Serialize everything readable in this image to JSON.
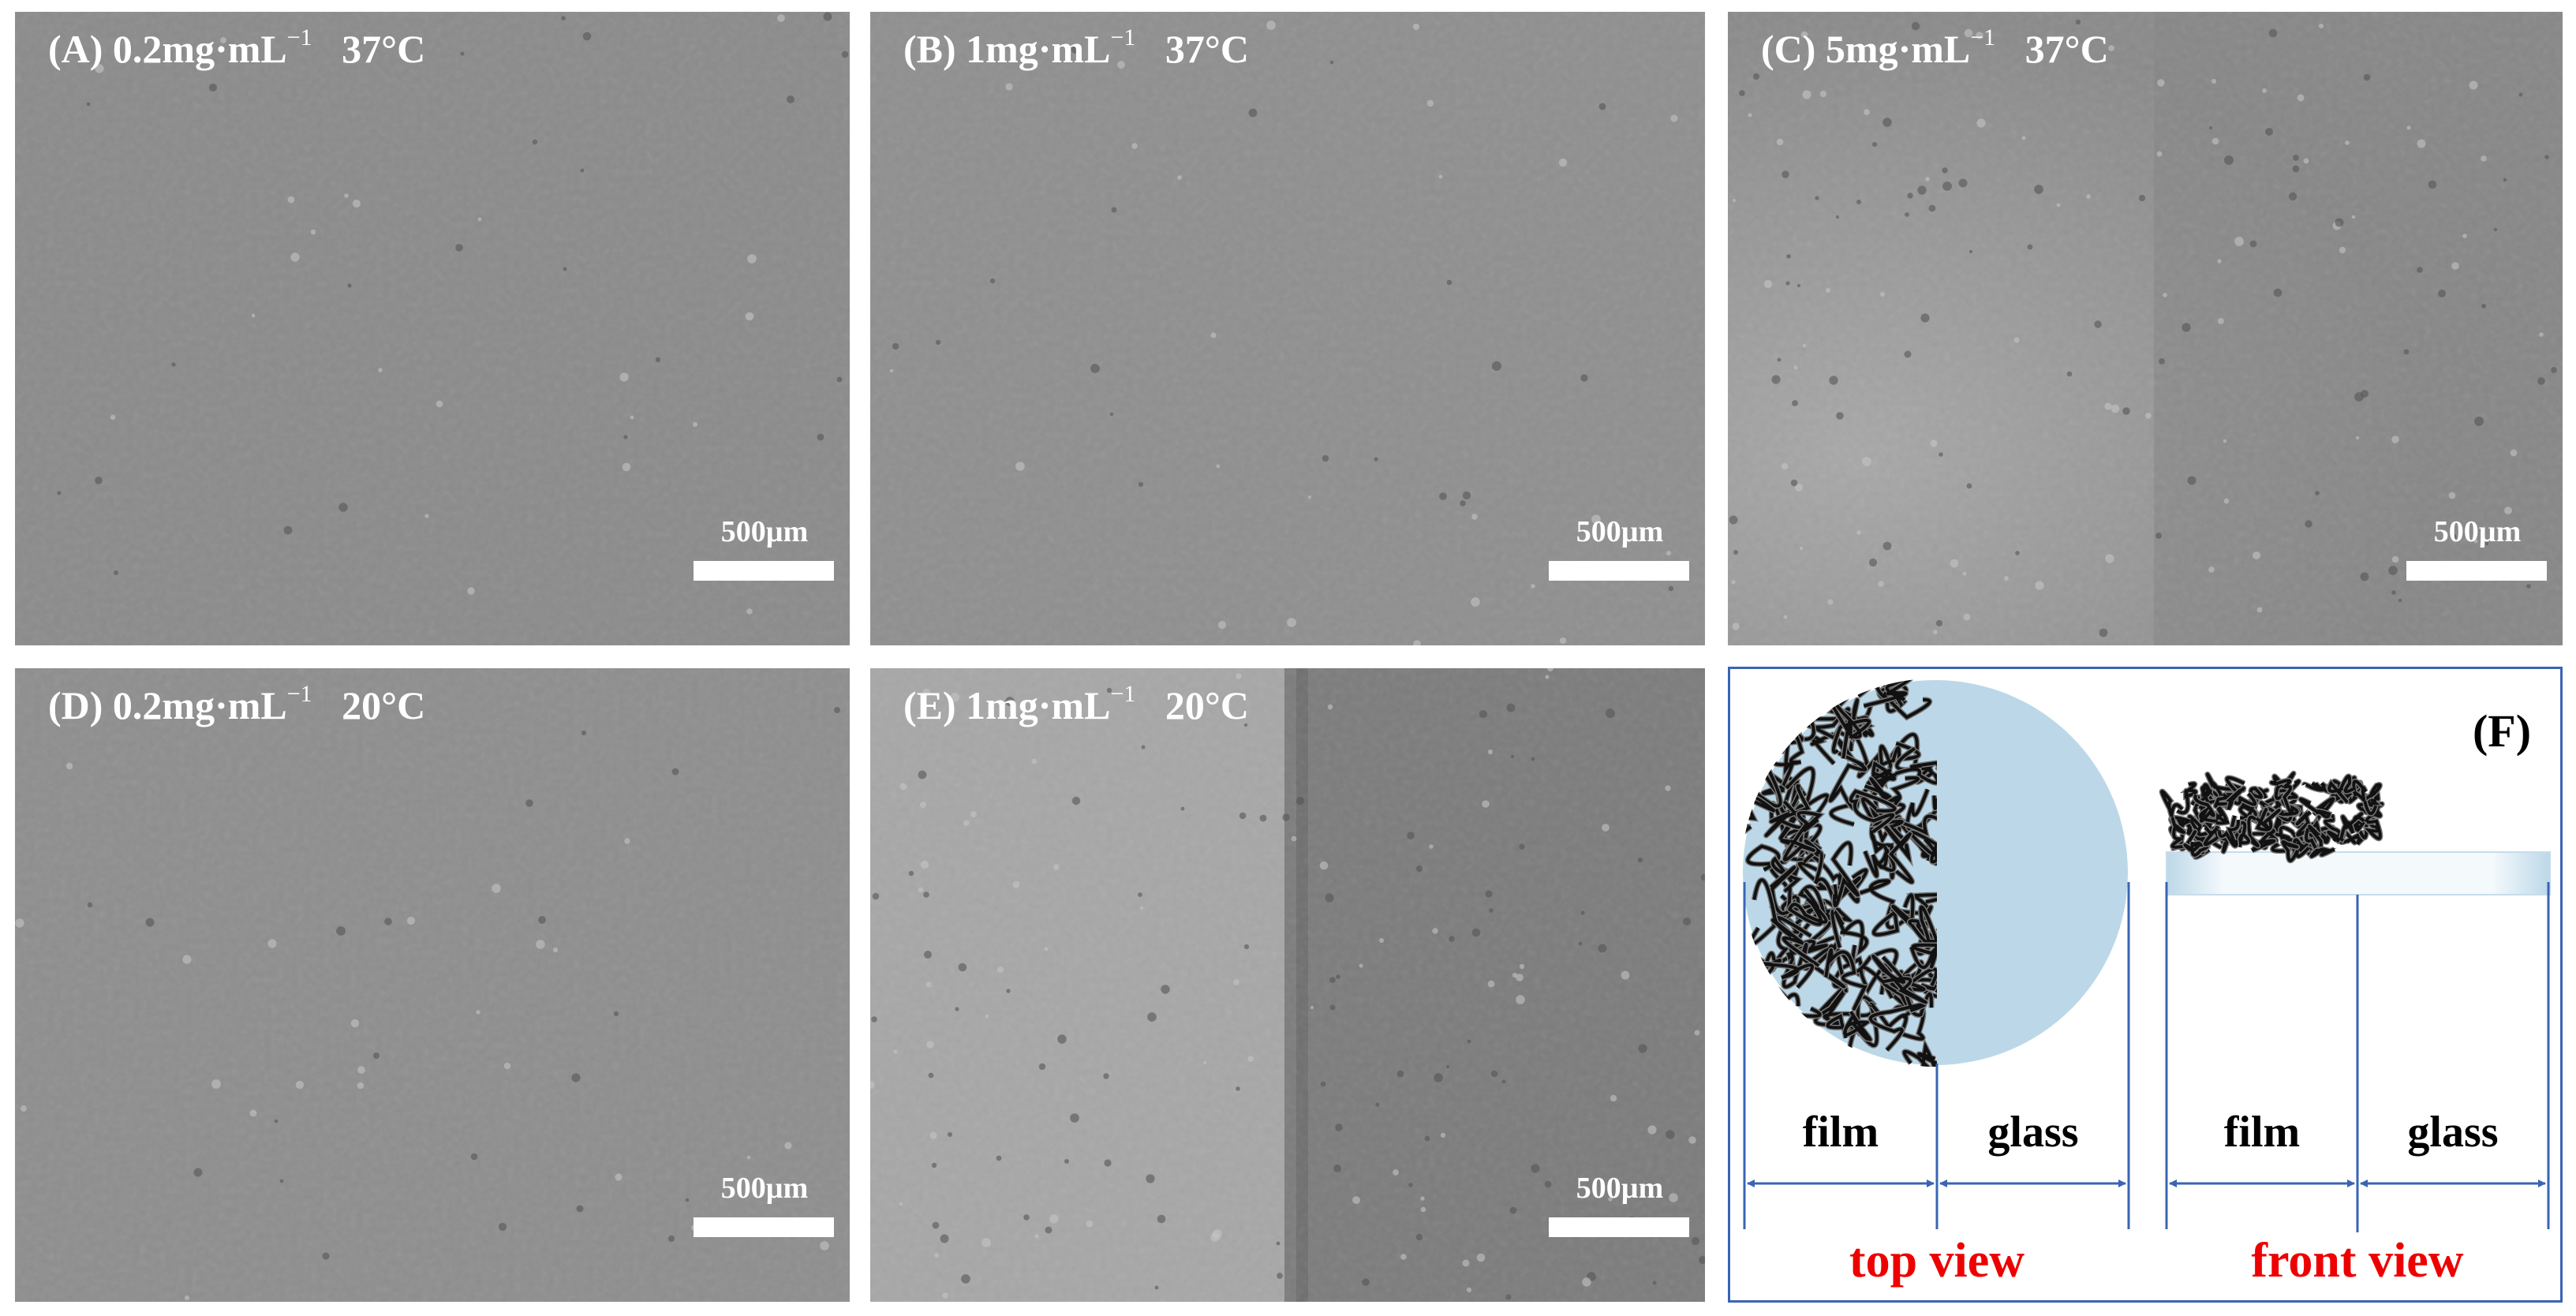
{
  "panels": [
    {
      "letter": "(A)",
      "conc": "0.2mg·mL",
      "exp": "−1",
      "temp": "37°C",
      "scale_bar": "500µm"
    },
    {
      "letter": "(B)",
      "conc": "1mg·mL",
      "exp": "−1",
      "temp": "37°C",
      "scale_bar": "500µm"
    },
    {
      "letter": "(C)",
      "conc": "5mg·mL",
      "exp": "−1",
      "temp": "37°C",
      "scale_bar": "500µm"
    },
    {
      "letter": "(D)",
      "conc": "0.2mg·mL",
      "exp": "−1",
      "temp": "20°C",
      "scale_bar": "500µm"
    },
    {
      "letter": "(E)",
      "conc": "1mg·mL",
      "exp": "−1",
      "temp": "20°C",
      "scale_bar": "500µm"
    }
  ],
  "schematic": {
    "label": "(F)",
    "top_view": {
      "title": "top view",
      "left": "film",
      "right": "glass"
    },
    "front_view": {
      "title": "front view",
      "left": "film",
      "right": "glass"
    }
  },
  "colors": {
    "frame": "#3a64b4",
    "glass": "#bcd8e8",
    "view_title": "#ee0000",
    "micrograph": "#8c8c8c"
  }
}
